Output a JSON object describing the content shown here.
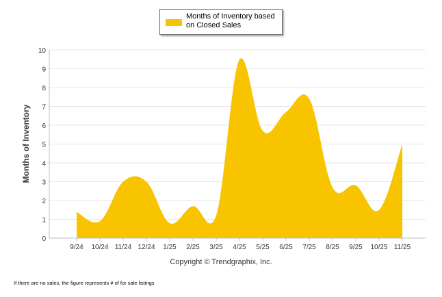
{
  "chart_data": {
    "type": "area",
    "legend_entries": [
      "Months of Inventory based on Closed Sales"
    ],
    "ylabel": "Months of Inventory",
    "xlabel": "",
    "categories": [
      "9/24",
      "10/24",
      "11/24",
      "12/24",
      "1/25",
      "2/25",
      "3/25",
      "4/25",
      "5/25",
      "6/25",
      "7/25",
      "8/25",
      "9/25",
      "10/25",
      "11/25"
    ],
    "series": [
      {
        "name": "Months of Inventory based on Closed Sales",
        "values": [
          1.4,
          0.9,
          3.0,
          3.0,
          0.8,
          1.7,
          1.2,
          9.5,
          5.7,
          6.7,
          7.4,
          2.7,
          2.8,
          1.5,
          5.0
        ]
      }
    ],
    "ylim": [
      0,
      10
    ],
    "yticks": [
      "0",
      "1",
      "2",
      "3",
      "4",
      "5",
      "6",
      "7",
      "8",
      "9",
      "10"
    ],
    "grid": true,
    "legend_position": "top-center",
    "color": "#F8C400"
  },
  "copyright": "Copyright © Trendgraphix, Inc.",
  "footnote": "If there are no sales, the figure represents # of for sale listings"
}
